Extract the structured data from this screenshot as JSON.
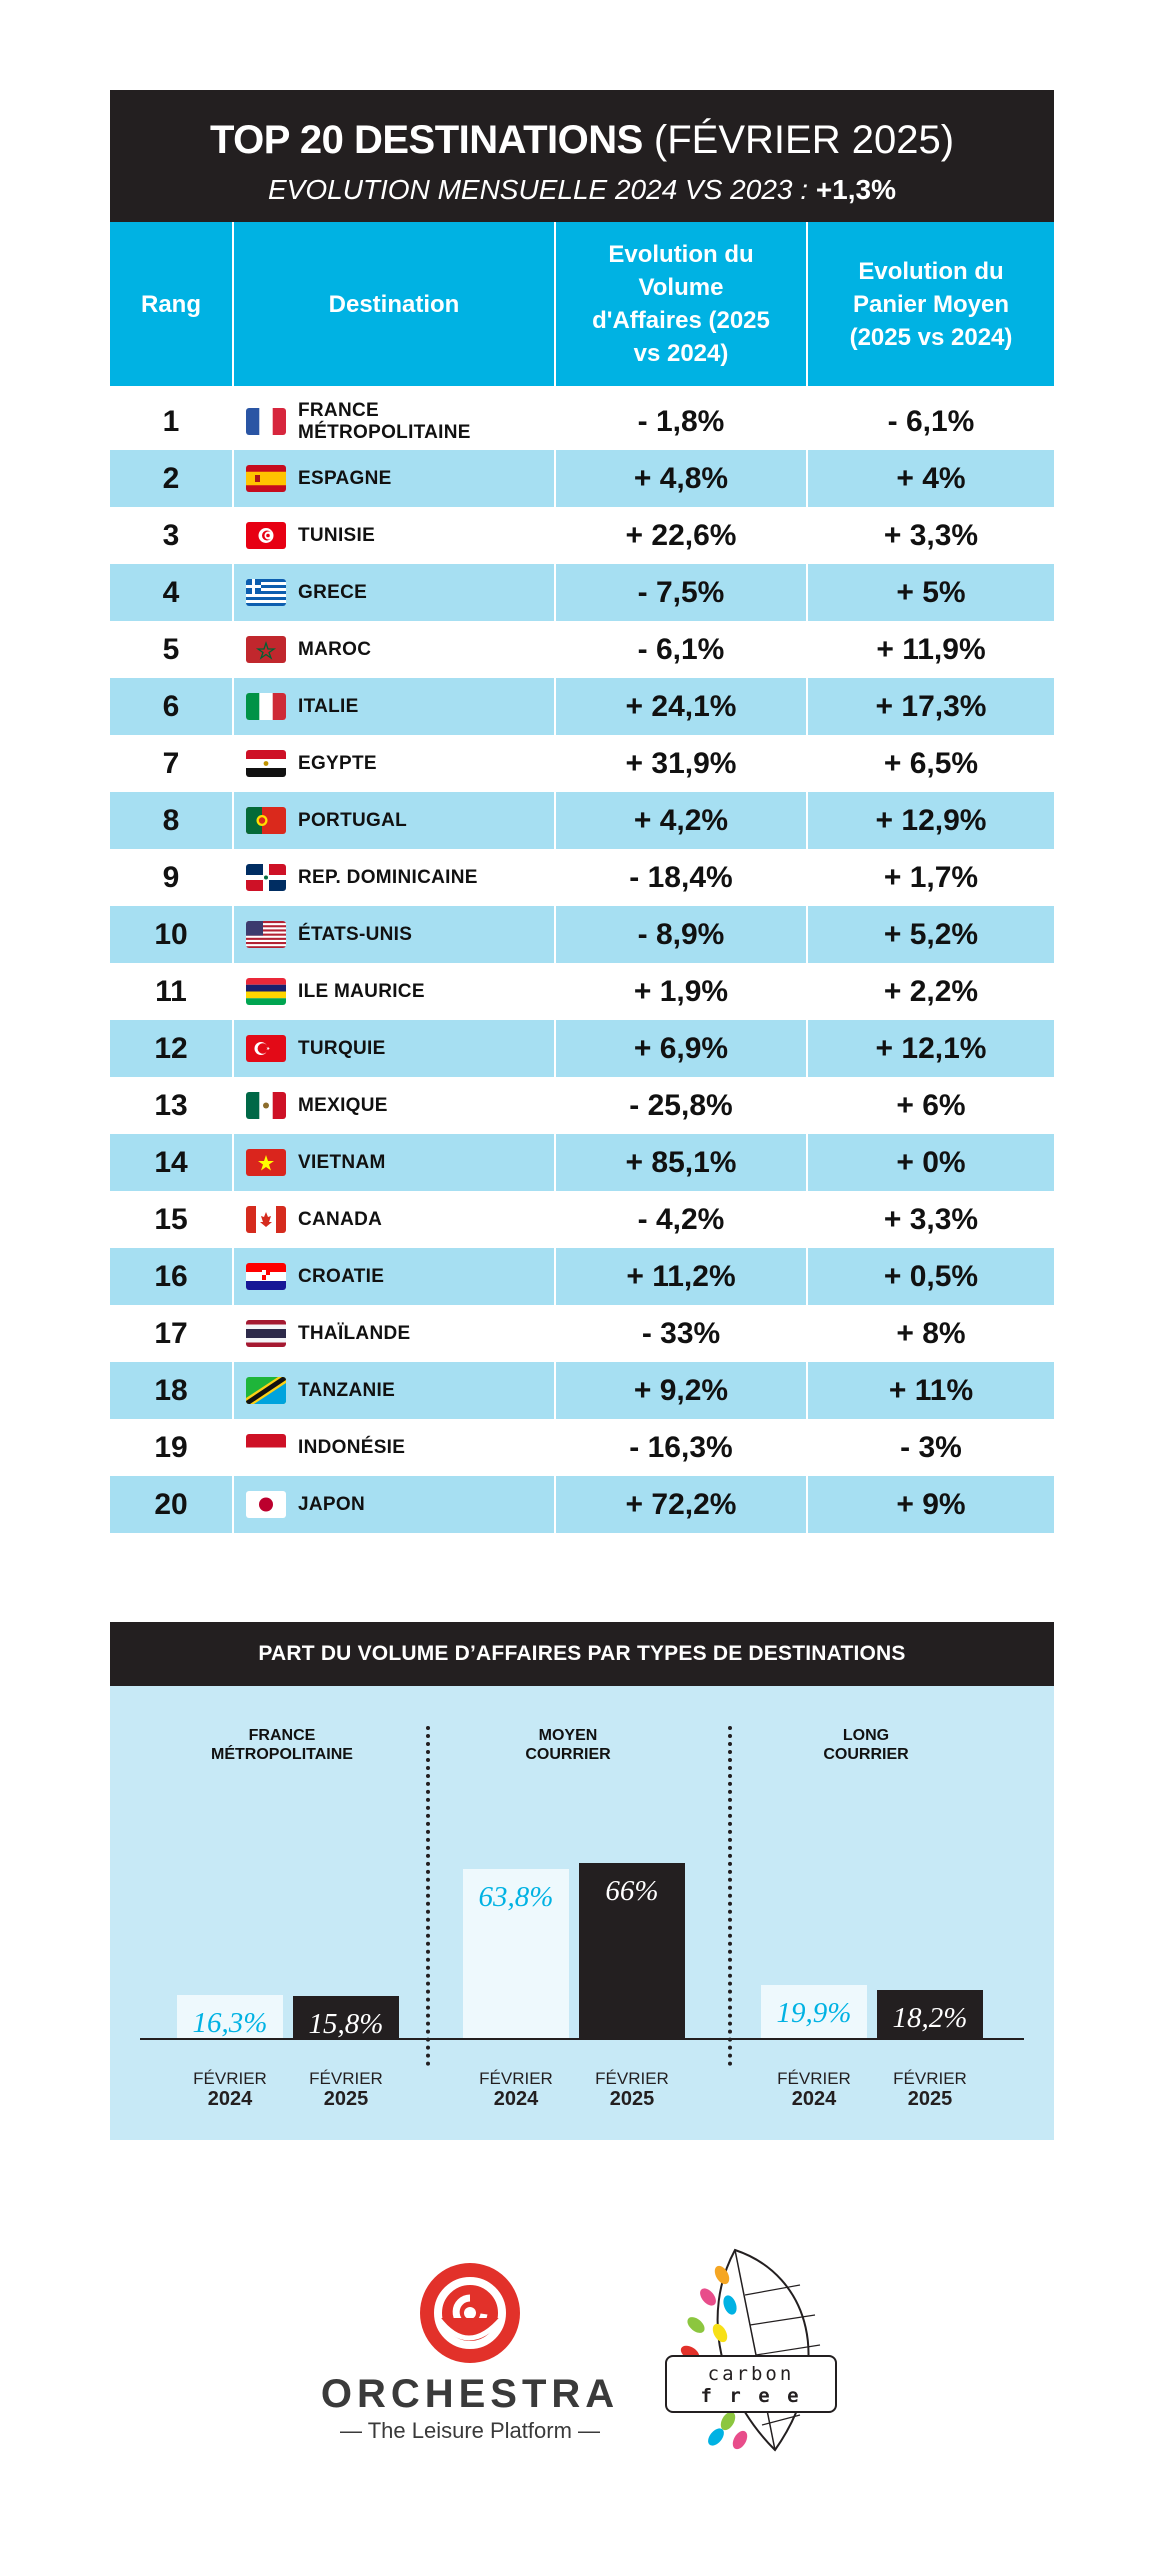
{
  "header": {
    "title_bold": "TOP 20 DESTINATIONS",
    "title_rest": " (FÉVRIER 2025)",
    "subtitle": "EVOLUTION MENSUELLE 2024 VS 2023 : ",
    "subtitle_value": "+1,3%"
  },
  "table": {
    "columns": [
      "Rang",
      "Destination",
      "Evolution du Volume d'Affaires (2025 vs 2024)",
      "Evolution du Panier Moyen (2025 vs 2024)"
    ],
    "rows": [
      {
        "rank": "1",
        "flag": "france-flag",
        "destination": "FRANCE MÉTROPOLITAINE",
        "volume": "- 1,8%",
        "panier": "- 6,1%"
      },
      {
        "rank": "2",
        "flag": "spain-flag",
        "destination": "ESPAGNE",
        "volume": "+ 4,8%",
        "panier": "+ 4%"
      },
      {
        "rank": "3",
        "flag": "tunisia-flag",
        "destination": "TUNISIE",
        "volume": "+ 22,6%",
        "panier": "+ 3,3%"
      },
      {
        "rank": "4",
        "flag": "greece-flag",
        "destination": "GRECE",
        "volume": "- 7,5%",
        "panier": "+ 5%"
      },
      {
        "rank": "5",
        "flag": "morocco-flag",
        "destination": "MAROC",
        "volume": "- 6,1%",
        "panier": "+ 11,9%"
      },
      {
        "rank": "6",
        "flag": "italy-flag",
        "destination": "ITALIE",
        "volume": "+ 24,1%",
        "panier": "+ 17,3%"
      },
      {
        "rank": "7",
        "flag": "egypt-flag",
        "destination": "EGYPTE",
        "volume": "+ 31,9%",
        "panier": "+ 6,5%"
      },
      {
        "rank": "8",
        "flag": "portugal-flag",
        "destination": "PORTUGAL",
        "volume": "+ 4,2%",
        "panier": "+ 12,9%"
      },
      {
        "rank": "9",
        "flag": "dominican-republic-flag",
        "destination": "REP. DOMINICAINE",
        "volume": "- 18,4%",
        "panier": "+ 1,7%"
      },
      {
        "rank": "10",
        "flag": "usa-flag",
        "destination": "ÉTATS-UNIS",
        "volume": "- 8,9%",
        "panier": "+ 5,2%"
      },
      {
        "rank": "11",
        "flag": "mauritius-flag",
        "destination": "ILE MAURICE",
        "volume": "+ 1,9%",
        "panier": "+ 2,2%"
      },
      {
        "rank": "12",
        "flag": "turkey-flag",
        "destination": "TURQUIE",
        "volume": "+ 6,9%",
        "panier": "+ 12,1%"
      },
      {
        "rank": "13",
        "flag": "mexico-flag",
        "destination": "MEXIQUE",
        "volume": "- 25,8%",
        "panier": "+ 6%"
      },
      {
        "rank": "14",
        "flag": "vietnam-flag",
        "destination": "VIETNAM",
        "volume": "+ 85,1%",
        "panier": "+ 0%"
      },
      {
        "rank": "15",
        "flag": "canada-flag",
        "destination": "CANADA",
        "volume": "- 4,2%",
        "panier": "+ 3,3%"
      },
      {
        "rank": "16",
        "flag": "croatia-flag",
        "destination": "CROATIE",
        "volume": "+ 11,2%",
        "panier": "+ 0,5%"
      },
      {
        "rank": "17",
        "flag": "thailand-flag",
        "destination": "THAÏLANDE",
        "volume": "- 33%",
        "panier": "+ 8%"
      },
      {
        "rank": "18",
        "flag": "tanzania-flag",
        "destination": "TANZANIE",
        "volume": "+ 9,2%",
        "panier": "+ 11%"
      },
      {
        "rank": "19",
        "flag": "indonesia-flag",
        "destination": "INDONÉSIE",
        "volume": "- 16,3%",
        "panier": "- 3%"
      },
      {
        "rank": "20",
        "flag": "japan-flag",
        "destination": "JAPON",
        "volume": "+ 72,2%",
        "panier": "+ 9%"
      }
    ]
  },
  "section2": {
    "title": "PART DU VOLUME D’AFFAIRES PAR TYPES DE DESTINATIONS"
  },
  "chart_data": {
    "type": "bar",
    "title": "PART DU VOLUME D’AFFAIRES PAR TYPES DE DESTINATIONS",
    "groups": [
      {
        "label_line1": "FRANCE",
        "label_line2": "MÉTROPOLITAINE",
        "values": [
          16.3,
          15.8
        ],
        "labels": [
          "16,3%",
          "15,8%"
        ]
      },
      {
        "label_line1": "MOYEN",
        "label_line2": "COURRIER",
        "values": [
          63.8,
          66
        ],
        "labels": [
          "63,8%",
          "66%"
        ]
      },
      {
        "label_line1": "LONG",
        "label_line2": "COURRIER",
        "values": [
          19.9,
          18.2
        ],
        "labels": [
          "19,9%",
          "18,2%"
        ]
      }
    ],
    "series": [
      {
        "month": "FÉVRIER",
        "year": "2024",
        "color": "#eef9fd",
        "label_color": "#00b2e3"
      },
      {
        "month": "FÉVRIER",
        "year": "2025",
        "color": "#231f20",
        "label_color": "#ffffff"
      }
    ],
    "ylim": [
      0,
      100
    ],
    "grid": false
  },
  "logos": {
    "orchestra_name": "ORCHESTRA",
    "orchestra_tagline": "— The Leisure Platform —",
    "carbon_line1": "carbon",
    "carbon_line2": "f r e e"
  },
  "colors": {
    "accent": "#00b2e3",
    "alt_row": "#a6dff2",
    "dark": "#231f20",
    "panel": "#c7e9f6",
    "brand_red": "#e2312a"
  }
}
